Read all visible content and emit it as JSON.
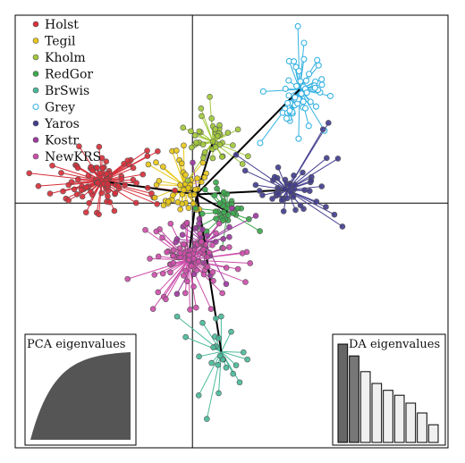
{
  "chart_data": {
    "type": "scatter",
    "subtype": "dapc-scatter-with-star-lines",
    "x_axis_line": true,
    "y_axis_line": true,
    "grid": false,
    "legend_position": "top-left",
    "xlim": [
      -4.3,
      6.2
    ],
    "ylim": [
      -5.6,
      4.3
    ],
    "groups": [
      {
        "name": "Holst",
        "color": "#d7303a",
        "marker": "filled",
        "centroid": [
          -2.2,
          0.5
        ],
        "spread": [
          0.75,
          0.42
        ],
        "count": 95
      },
      {
        "name": "Tegil",
        "color": "#e8c818",
        "marker": "filled",
        "centroid": [
          -0.2,
          0.4
        ],
        "spread": [
          0.45,
          0.45
        ],
        "count": 45
      },
      {
        "name": "Kholm",
        "color": "#a2c93a",
        "marker": "filled",
        "centroid": [
          0.5,
          1.4
        ],
        "spread": [
          0.5,
          0.35
        ],
        "count": 40
      },
      {
        "name": "RedGor",
        "color": "#3ba94c",
        "marker": "filled",
        "centroid": [
          0.85,
          -0.2
        ],
        "spread": [
          0.3,
          0.38
        ],
        "count": 35
      },
      {
        "name": "BrSwis",
        "color": "#49b99a",
        "marker": "filled",
        "centroid": [
          0.7,
          -3.4
        ],
        "spread": [
          0.35,
          0.7
        ],
        "count": 25
      },
      {
        "name": "Grey",
        "color": "#36b2e2",
        "marker": "open",
        "centroid": [
          2.6,
          2.6
        ],
        "spread": [
          0.4,
          0.55
        ],
        "count": 55
      },
      {
        "name": "Yaros",
        "color": "#433d8e",
        "marker": "filled",
        "centroid": [
          2.3,
          0.3
        ],
        "spread": [
          0.75,
          0.45
        ],
        "count": 50
      },
      {
        "name": "Kostr",
        "color": "#9e3aa0",
        "marker": "filled",
        "centroid": [
          0.3,
          -0.9
        ],
        "spread": [
          0.45,
          0.7
        ],
        "count": 30
      },
      {
        "name": "NewKRS",
        "color": "#cd4eaa",
        "marker": "filled",
        "centroid": [
          -0.1,
          -1.3
        ],
        "spread": [
          0.6,
          0.55
        ],
        "count": 85
      }
    ],
    "center": [
      0.1,
      0.2
    ],
    "insets": [
      {
        "title": "PCA eigenvalues",
        "position": "bottom-left",
        "kind": "cumulative-area",
        "fill": "#555555"
      },
      {
        "title": "DA eigenvalues",
        "position": "bottom-right",
        "kind": "bar",
        "values": [
          1.0,
          0.88,
          0.72,
          0.6,
          0.53,
          0.48,
          0.4,
          0.3,
          0.18
        ],
        "colors": [
          "#666666",
          "#777777",
          "#f0f0f0",
          "#f0f0f0",
          "#f0f0f0",
          "#f0f0f0",
          "#f0f0f0",
          "#f0f0f0",
          "#f0f0f0"
        ]
      }
    ]
  }
}
